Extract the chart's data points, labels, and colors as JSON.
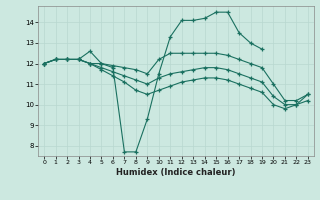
{
  "xlabel": "Humidex (Indice chaleur)",
  "ylabel": "",
  "xlim": [
    -0.5,
    23.5
  ],
  "ylim": [
    7.5,
    14.8
  ],
  "xticks": [
    0,
    1,
    2,
    3,
    4,
    5,
    6,
    7,
    8,
    9,
    10,
    11,
    12,
    13,
    14,
    15,
    16,
    17,
    18,
    19,
    20,
    21,
    22,
    23
  ],
  "yticks": [
    8,
    9,
    10,
    11,
    12,
    13,
    14
  ],
  "background_color": "#cce8e0",
  "line_color": "#1a7060",
  "grid_color": "#b8d8d0",
  "series": [
    {
      "x": [
        0,
        1,
        2,
        3,
        4,
        5,
        6,
        7,
        8,
        9,
        10,
        11,
        12,
        13,
        14,
        15,
        16,
        17,
        18,
        19
      ],
      "y": [
        12.0,
        12.2,
        12.2,
        12.2,
        12.6,
        12.0,
        11.8,
        7.7,
        7.7,
        9.3,
        11.5,
        13.3,
        14.1,
        14.1,
        14.2,
        14.5,
        14.5,
        13.5,
        13.0,
        12.7
      ]
    },
    {
      "x": [
        0,
        1,
        2,
        3,
        4,
        5,
        6,
        7,
        8,
        9,
        10,
        11,
        12,
        13,
        14,
        15,
        16,
        17,
        18,
        19,
        20,
        21,
        22,
        23
      ],
      "y": [
        12.0,
        12.2,
        12.2,
        12.2,
        12.0,
        12.0,
        11.9,
        11.8,
        11.7,
        11.5,
        12.2,
        12.5,
        12.5,
        12.5,
        12.5,
        12.5,
        12.4,
        12.2,
        12.0,
        11.8,
        11.0,
        10.2,
        10.2,
        10.5
      ]
    },
    {
      "x": [
        0,
        1,
        2,
        3,
        4,
        5,
        6,
        7,
        8,
        9,
        10,
        11,
        12,
        13,
        14,
        15,
        16,
        17,
        18,
        19,
        20,
        21,
        22,
        23
      ],
      "y": [
        12.0,
        12.2,
        12.2,
        12.2,
        12.0,
        11.8,
        11.6,
        11.4,
        11.2,
        11.0,
        11.3,
        11.5,
        11.6,
        11.7,
        11.8,
        11.8,
        11.7,
        11.5,
        11.3,
        11.1,
        10.4,
        10.0,
        10.0,
        10.2
      ]
    },
    {
      "x": [
        0,
        1,
        2,
        3,
        4,
        5,
        6,
        7,
        8,
        9,
        10,
        11,
        12,
        13,
        14,
        15,
        16,
        17,
        18,
        19,
        20,
        21,
        22,
        23
      ],
      "y": [
        12.0,
        12.2,
        12.2,
        12.2,
        12.0,
        11.7,
        11.4,
        11.1,
        10.7,
        10.5,
        10.7,
        10.9,
        11.1,
        11.2,
        11.3,
        11.3,
        11.2,
        11.0,
        10.8,
        10.6,
        10.0,
        9.8,
        10.0,
        10.5
      ]
    }
  ]
}
